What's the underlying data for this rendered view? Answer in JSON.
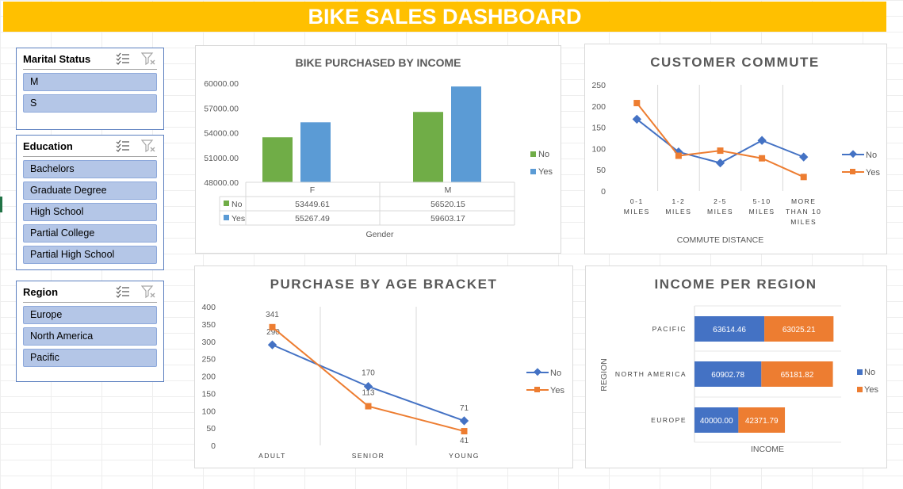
{
  "header": {
    "title": "BIKE SALES DASHBOARD"
  },
  "colors": {
    "title_bg": "#ffc000",
    "no_green": "#70ad47",
    "yes_blue": "#5b9bd5",
    "no_blue": "#4472c4",
    "yes_orange": "#ed7d31",
    "slicer_item": "#b4c6e7"
  },
  "slicers": [
    {
      "title": "Marital Status",
      "items": [
        "M",
        "S"
      ]
    },
    {
      "title": "Education",
      "items": [
        "Bachelors",
        "Graduate Degree",
        "High School",
        "Partial College",
        "Partial High School"
      ]
    },
    {
      "title": "Region",
      "items": [
        "Europe",
        "North America",
        "Pacific"
      ]
    }
  ],
  "slicer_icons": {
    "multi_select": "multi-select-icon",
    "clear_filter": "clear-filter-icon"
  },
  "chart_data": [
    {
      "type": "bar",
      "title": "BIKE PURCHASED BY INCOME",
      "xlabel": "Gender",
      "categories": [
        "F",
        "M"
      ],
      "series": [
        {
          "name": "No",
          "values": [
            53449.61,
            56520.15
          ],
          "labels": [
            "53449.61",
            "56520.15"
          ]
        },
        {
          "name": "Yes",
          "values": [
            55267.49,
            59603.17
          ],
          "labels": [
            "55267.49",
            "59603.17"
          ]
        }
      ],
      "ylim": [
        48000,
        60000
      ],
      "yticks": [
        "60000.00",
        "57000.00",
        "54000.00",
        "51000.00",
        "48000.00"
      ],
      "data_table": true,
      "legend": "right"
    },
    {
      "type": "line",
      "title": "CUSTOMER COMMUTE",
      "xlabel": "COMMUTE DISTANCE",
      "categories": [
        [
          "0-1",
          "MILES"
        ],
        [
          "1-2",
          "MILES"
        ],
        [
          "2-5",
          "MILES"
        ],
        [
          "5-10",
          "MILES"
        ],
        [
          "MORE",
          "THAN 10",
          "MILES"
        ]
      ],
      "series": [
        {
          "name": "No",
          "values": [
            169,
            92,
            66,
            119,
            80
          ]
        },
        {
          "name": "Yes",
          "values": [
            207,
            83,
            95,
            77,
            33
          ]
        }
      ],
      "ylim": [
        0,
        250
      ],
      "yticks": [
        "250",
        "200",
        "150",
        "100",
        "50",
        "0"
      ],
      "legend": "right"
    },
    {
      "type": "line",
      "title": "PURCHASE BY AGE BRACKET",
      "categories": [
        "ADULT",
        "SENIOR",
        "YOUNG"
      ],
      "series": [
        {
          "name": "No",
          "values": [
            290,
            170,
            71
          ],
          "labels": [
            "290",
            "170",
            "71"
          ]
        },
        {
          "name": "Yes",
          "values": [
            341,
            113,
            41
          ],
          "labels": [
            "341",
            "113",
            "41"
          ]
        }
      ],
      "ylim": [
        0,
        400
      ],
      "yticks": [
        "400",
        "350",
        "300",
        "250",
        "200",
        "150",
        "100",
        "50",
        "0"
      ],
      "legend": "right"
    },
    {
      "type": "bar",
      "orientation": "horizontal",
      "stacked": true,
      "title": "INCOME PER REGION",
      "xlabel": "INCOME",
      "ylabel": "REGION",
      "categories": [
        "PACIFIC",
        "NORTH AMERICA",
        "EUROPE"
      ],
      "series": [
        {
          "name": "No",
          "values": [
            63614.46,
            60902.78,
            40000.0
          ],
          "labels": [
            "63614.46",
            "60902.78",
            "40000.00"
          ]
        },
        {
          "name": "Yes",
          "values": [
            63025.21,
            65181.82,
            42371.79
          ],
          "labels": [
            "63025.21",
            "65181.82",
            "42371.79"
          ]
        }
      ],
      "legend": "right"
    }
  ]
}
